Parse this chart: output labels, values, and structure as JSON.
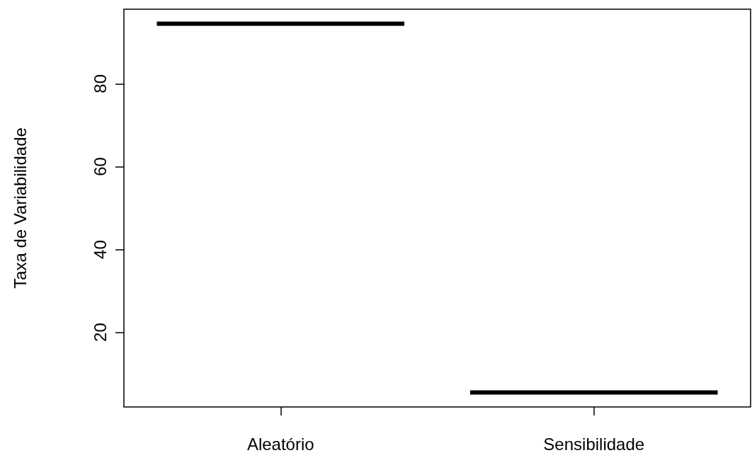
{
  "chart_data": {
    "type": "box",
    "ylabel": "Taxa de Variabilidade",
    "categories": [
      "Aleatório",
      "Sensibilidade"
    ],
    "boxes": [
      {
        "low": 94.5,
        "q1": 94.5,
        "median": 94.5,
        "q3": 94.5,
        "high": 94.5
      },
      {
        "low": 5.5,
        "q1": 5.5,
        "median": 5.5,
        "q3": 5.5,
        "high": 5.5
      }
    ],
    "ylim": [
      2,
      98
    ],
    "yticks": [
      20,
      40,
      60,
      80
    ]
  }
}
